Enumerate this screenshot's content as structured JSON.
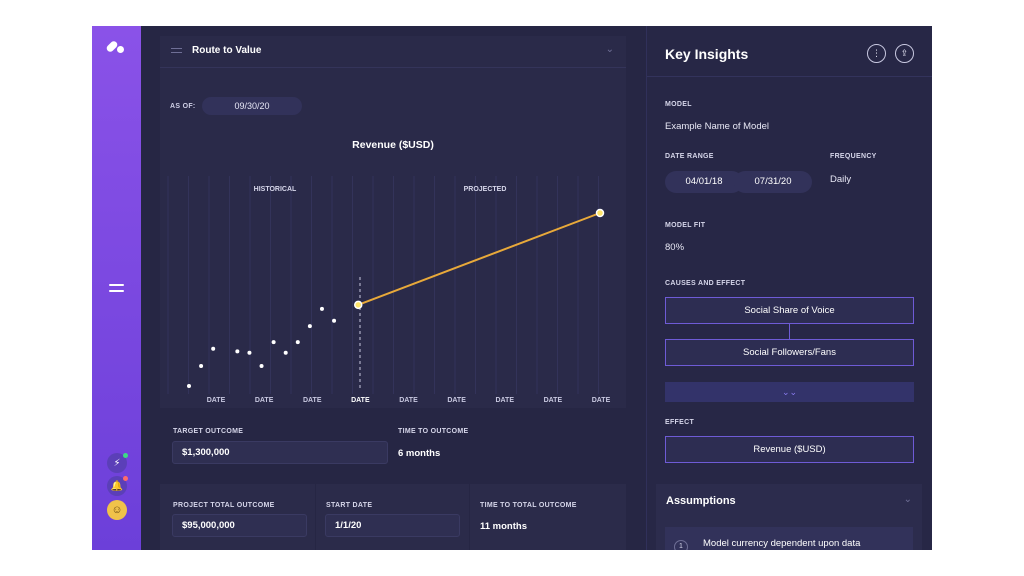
{
  "main": {
    "card_title": "Route to Value",
    "as_of_label": "AS OF:",
    "as_of_value": "09/30/20",
    "chart_title": "Revenue ($USD)"
  },
  "chart_data": {
    "type": "scatter",
    "title": "Revenue ($USD)",
    "regions": [
      "HISTORICAL",
      "PROJECTED"
    ],
    "tick_labels": [
      "DATE",
      "DATE",
      "DATE",
      "DATE",
      "DATE",
      "DATE",
      "DATE",
      "DATE",
      "DATE"
    ],
    "historical_points": [
      {
        "x": 0.0,
        "y": 0.0
      },
      {
        "x": 0.5,
        "y": 0.15
      },
      {
        "x": 1.0,
        "y": 0.28
      },
      {
        "x": 2.0,
        "y": 0.26
      },
      {
        "x": 2.5,
        "y": 0.25
      },
      {
        "x": 3.0,
        "y": 0.15
      },
      {
        "x": 3.5,
        "y": 0.33
      },
      {
        "x": 4.0,
        "y": 0.25
      },
      {
        "x": 4.5,
        "y": 0.33
      },
      {
        "x": 5.0,
        "y": 0.45
      },
      {
        "x": 5.5,
        "y": 0.58
      },
      {
        "x": 6.0,
        "y": 0.49
      }
    ],
    "projection": [
      {
        "x": 7.0,
        "y": 0.61
      },
      {
        "x": 17.0,
        "y": 1.3
      }
    ],
    "ylim": [
      0,
      1.3
    ],
    "xlim": [
      0,
      17
    ]
  },
  "outcome": {
    "target_label": "TARGET OUTCOME",
    "target_value": "$1,300,000",
    "time_label": "TIME TO OUTCOME",
    "time_value": "6 months"
  },
  "totals": {
    "project_label": "PROJECT TOTAL OUTCOME",
    "project_value": "$95,000,000",
    "start_label": "START DATE",
    "start_value": "1/1/20",
    "time_total_label": "TIME TO TOTAL OUTCOME",
    "time_total_value": "11 months"
  },
  "insights": {
    "title": "Key Insights",
    "model_label": "MODEL",
    "model_value": "Example Name of Model",
    "date_range_label": "DATE RANGE",
    "date_start": "04/01/18",
    "date_end": "07/31/20",
    "frequency_label": "FREQUENCY",
    "frequency_value": "Daily",
    "model_fit_label": "MODEL FIT",
    "model_fit_value": "80%",
    "causes_label": "CAUSES AND EFFECT",
    "causes": [
      "Social Share of Voice",
      "Social Followers/Fans"
    ],
    "effect_label": "EFFECT",
    "effect_value": "Revenue ($USD)",
    "assumptions_title": "Assumptions",
    "assumptions": [
      {
        "num": "1",
        "text": "Model currency dependent upon data"
      }
    ]
  },
  "colors": {
    "accent": "#8a52e8",
    "line": "#e8a93a",
    "panel": "#252543"
  }
}
